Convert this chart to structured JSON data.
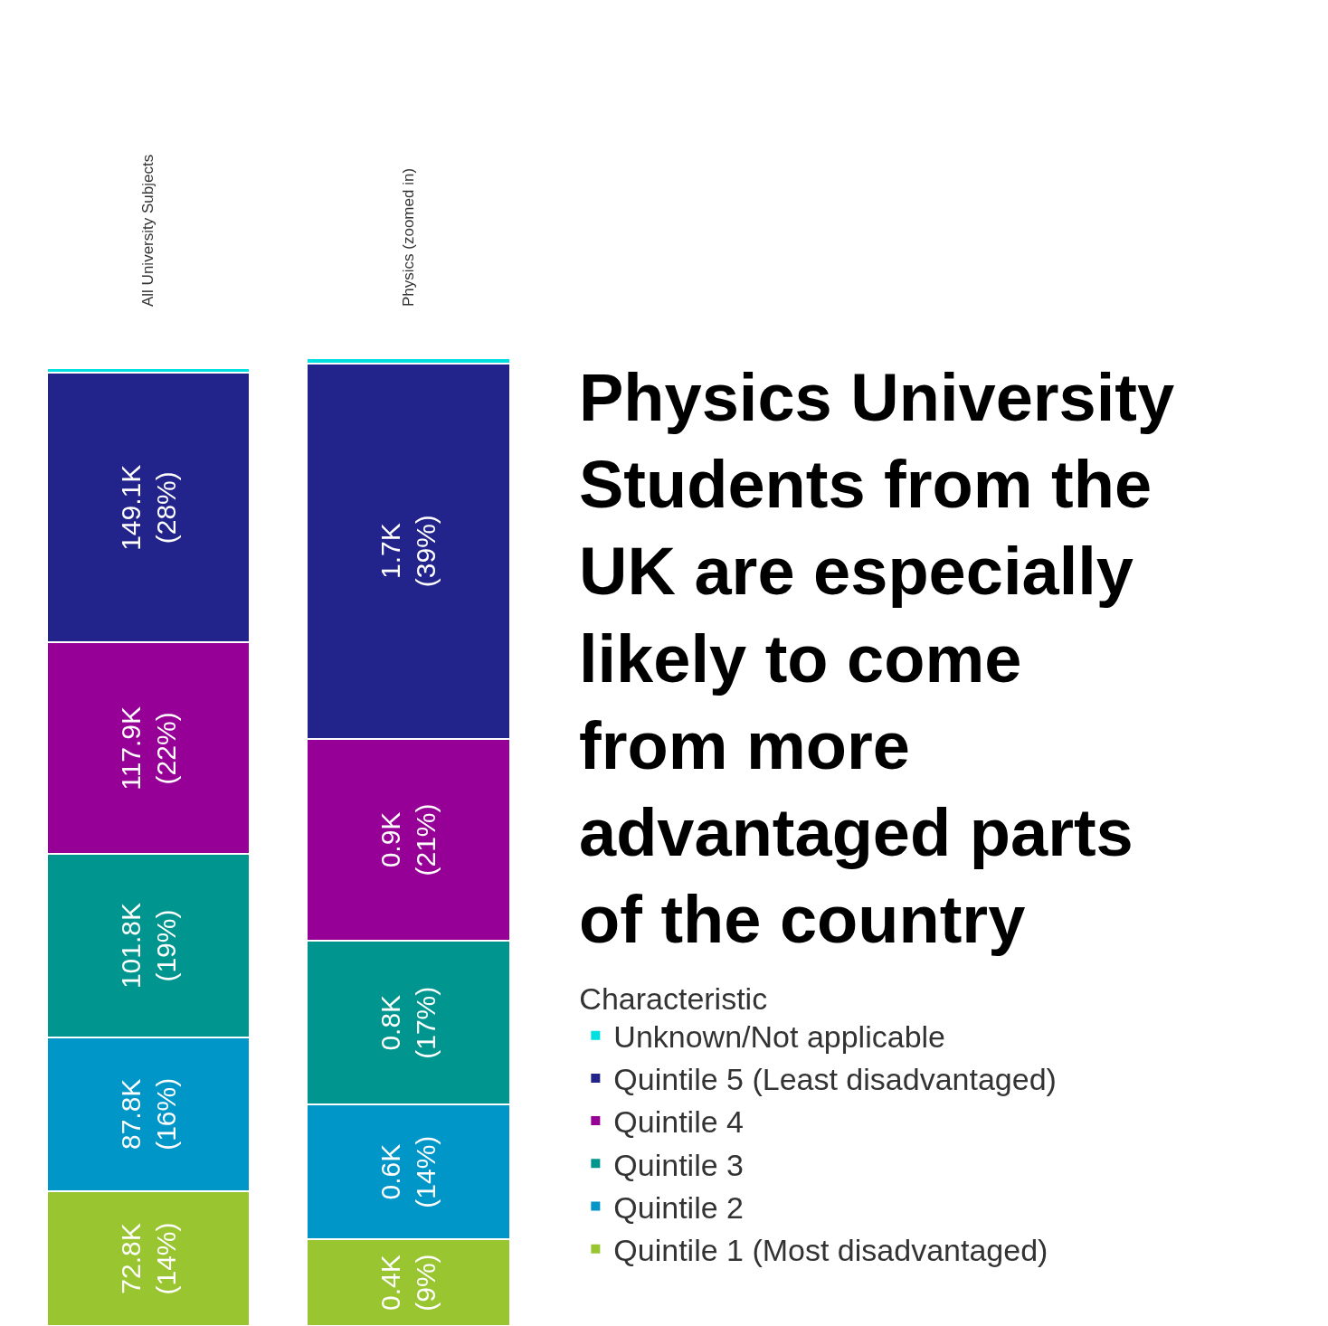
{
  "chart_data": {
    "type": "bar",
    "stacked": true,
    "title": "Physics University Students from the UK are especially likely to come from more advantaged parts of the country",
    "legend_title": "Characteristic",
    "legend": "right",
    "categories": [
      "All University Subjects",
      "Physics (zoomed in)"
    ],
    "series": [
      {
        "name": "Quintile 1 (Most disadvantaged)",
        "color": "#99c630",
        "values": [
          14,
          9
        ],
        "value_labels": [
          "72.8K\n(14%)",
          "0.4K\n(9%)"
        ]
      },
      {
        "name": "Quintile 2",
        "color": "#0096c8",
        "values": [
          16,
          14
        ],
        "value_labels": [
          "87.8K\n(16%)",
          "0.6K\n(14%)"
        ]
      },
      {
        "name": "Quintile 3",
        "color": "#00968f",
        "values": [
          19,
          17
        ],
        "value_labels": [
          "101.8K\n(19%)",
          "0.8K\n(17%)"
        ]
      },
      {
        "name": "Quintile 4",
        "color": "#960096",
        "values": [
          22,
          21
        ],
        "value_labels": [
          "117.9K\n(22%)",
          "0.9K\n(21%)"
        ]
      },
      {
        "name": "Quintile 5 (Least disadvantaged)",
        "color": "#22248c",
        "values": [
          28,
          39
        ],
        "value_labels": [
          "149.1K\n(28%)",
          "1.7K\n(39%)"
        ]
      },
      {
        "name": "Unknown/Not applicable",
        "color": "#00e0e0",
        "values": [
          0.5,
          0.5
        ]
      }
    ]
  }
}
